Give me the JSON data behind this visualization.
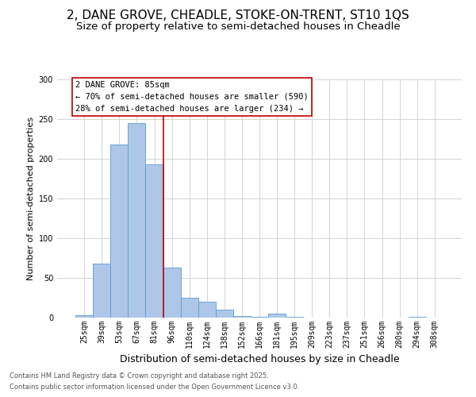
{
  "title1": "2, DANE GROVE, CHEADLE, STOKE-ON-TRENT, ST10 1QS",
  "title2": "Size of property relative to semi-detached houses in Cheadle",
  "categories": [
    "25sqm",
    "39sqm",
    "53sqm",
    "67sqm",
    "81sqm",
    "96sqm",
    "110sqm",
    "124sqm",
    "138sqm",
    "152sqm",
    "166sqm",
    "181sqm",
    "195sqm",
    "209sqm",
    "223sqm",
    "237sqm",
    "251sqm",
    "266sqm",
    "280sqm",
    "294sqm",
    "308sqm"
  ],
  "values": [
    3,
    68,
    218,
    245,
    193,
    63,
    25,
    20,
    10,
    2,
    1,
    5,
    1,
    0,
    0,
    0,
    0,
    0,
    0,
    1,
    0
  ],
  "bar_color": "#aec6e8",
  "bar_edge_color": "#5b9bd5",
  "ylabel": "Number of semi-detached properties",
  "xlabel": "Distribution of semi-detached houses by size in Cheadle",
  "ylim": [
    0,
    300
  ],
  "yticks": [
    0,
    50,
    100,
    150,
    200,
    250,
    300
  ],
  "vline_x_idx": 4,
  "vline_color": "#c00000",
  "annotation_title": "2 DANE GROVE: 85sqm",
  "annotation_line1": "← 70% of semi-detached houses are smaller (590)",
  "annotation_line2": "28% of semi-detached houses are larger (234) →",
  "annotation_box_color": "#ffffff",
  "annotation_box_edge": "#c00000",
  "footer1": "Contains HM Land Registry data © Crown copyright and database right 2025.",
  "footer2": "Contains public sector information licensed under the Open Government Licence v3.0.",
  "title_fontsize": 11,
  "subtitle_fontsize": 9.5,
  "ylabel_fontsize": 8,
  "xlabel_fontsize": 9,
  "tick_fontsize": 7,
  "footer_fontsize": 6,
  "annotation_fontsize": 7.5
}
